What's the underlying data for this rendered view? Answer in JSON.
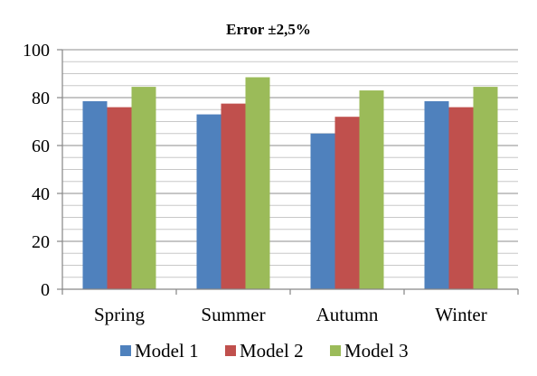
{
  "chart_data": {
    "type": "bar",
    "title": "Error ±2,5%",
    "categories": [
      "Spring",
      "Summer",
      "Autumn",
      "Winter"
    ],
    "series": [
      {
        "name": "Model 1",
        "color": "#4f81bd",
        "values": [
          78.5,
          73,
          65,
          78.5
        ]
      },
      {
        "name": "Model 2",
        "color": "#c0504d",
        "values": [
          76,
          77.5,
          72,
          76
        ]
      },
      {
        "name": "Model 3",
        "color": "#9bbb59",
        "values": [
          84.5,
          88.5,
          83,
          84.5
        ]
      }
    ],
    "ylim": [
      0,
      100
    ],
    "yticks": [
      0,
      20,
      40,
      60,
      80,
      100
    ],
    "xlabel": "",
    "ylabel": "",
    "grid": true,
    "legend_position": "bottom"
  }
}
